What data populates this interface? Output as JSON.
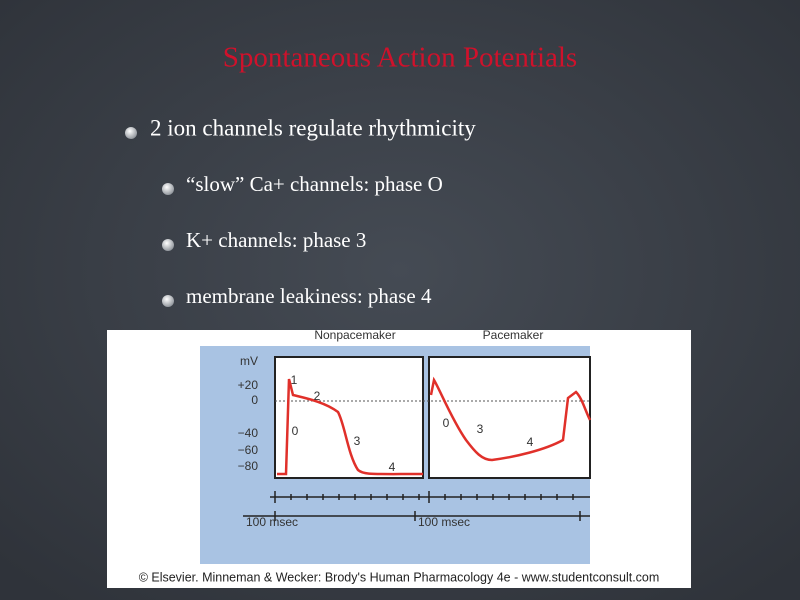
{
  "title": "Spontaneous Action Potentials",
  "bullets": [
    {
      "text": "2 ion channels regulate rhythmicity",
      "sub": [
        "“slow” Ca+ channels: phase O",
        "K+ channels:  phase 3",
        "membrane leakiness: phase 4"
      ]
    }
  ],
  "figure": {
    "panel_titles": [
      "Nonpacemaker",
      "Pacemaker"
    ],
    "y_unit": "mV",
    "y_labels": [
      "+20",
      "0",
      "−40",
      "−60",
      "−80"
    ],
    "nonpacemaker_phases": [
      "1",
      "2",
      "0",
      "3",
      "4"
    ],
    "pacemaker_phases": [
      "0",
      "3",
      "4"
    ],
    "scale_labels": [
      "100 msec",
      "100 msec"
    ],
    "credit": "© Elsevier. Minneman & Wecker: Brody's Human Pharmacology 4e - www.studentconsult.com"
  }
}
